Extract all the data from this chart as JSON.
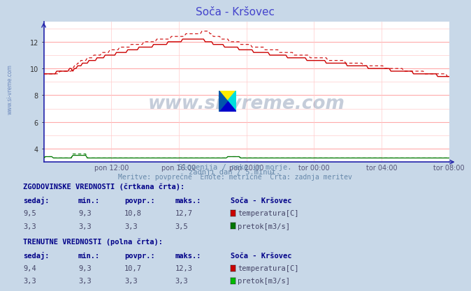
{
  "title": "Soča - Kršovec",
  "title_color": "#4444cc",
  "bg_color": "#c8d8e8",
  "plot_bg_color": "#ffffff",
  "grid_color_h": "#ffaaaa",
  "grid_color_v": "#ffcccc",
  "axis_color": "#2222aa",
  "xlabel_ticks": [
    "pon 12:00",
    "pon 16:00",
    "pon 20:00",
    "tor 00:00",
    "tor 04:00",
    "tor 08:00"
  ],
  "ylim": [
    3.0,
    13.5
  ],
  "yticks": [
    4,
    6,
    8,
    10,
    12
  ],
  "temp_color": "#cc0000",
  "flow_color": "#007700",
  "watermark_text": "www.si-vreme.com",
  "watermark_color": "#1a3a6e",
  "sidebar_text": "www.si-vreme.com",
  "sidebar_color": "#4466aa",
  "subtitle1": "Slovenija / reke in morje.",
  "subtitle2": "zadnji dan / 5 minut.",
  "subtitle3": "Meritve: povprečne  Enote: metrične  Črta: zadnja meritev",
  "subtitle_color": "#6688aa",
  "table_header1": "ZGODOVINSKE VREDNOSTI (črtkana črta):",
  "table_header2": "TRENUTNE VREDNOSTI (polna črta):",
  "table_color": "#000088",
  "col_headers": [
    "sedaj:",
    "min.:",
    "povpr.:",
    "maks.:",
    "Soča - Kršovec"
  ],
  "hist_temp": [
    9.5,
    9.3,
    10.8,
    12.7
  ],
  "hist_flow": [
    3.3,
    3.3,
    3.3,
    3.5
  ],
  "curr_temp": [
    9.4,
    9.3,
    10.7,
    12.3
  ],
  "curr_flow": [
    3.3,
    3.3,
    3.3,
    3.3
  ],
  "legend_temp_label": "temperatura[C]",
  "legend_flow_label": "pretok[m3/s]",
  "temp_swatch": "#cc0000",
  "flow_hist_swatch": "#007700",
  "flow_curr_swatch": "#00bb00"
}
